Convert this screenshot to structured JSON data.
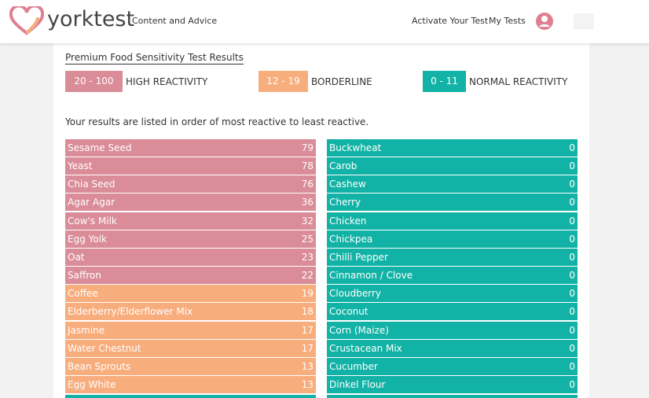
{
  "header": {
    "logo": "yorktest",
    "nav": [
      "Content and Advice"
    ],
    "actions": [
      "Activate Your Test",
      "My Tests"
    ]
  },
  "results": {
    "title": "Premium Food Sensitivity Test Results",
    "legend": [
      {
        "range": "20 - 100",
        "label": "HIGH REACTIVITY",
        "color": "#da8c98"
      },
      {
        "range": "12 - 19",
        "label": "BORDERLINE",
        "color": "#f8ad7d"
      },
      {
        "range": "0 - 11",
        "label": "NORMAL REACTIVITY",
        "color": "#12b3a6"
      }
    ],
    "note": "Your results are listed in order of most reactive to least reactive.",
    "columns": [
      [
        {
          "food": "Sesame Seed",
          "score": 79,
          "color": "#da8c98"
        },
        {
          "food": "Yeast",
          "score": 78,
          "color": "#da8c98"
        },
        {
          "food": "Chia Seed",
          "score": 76,
          "color": "#da8c98"
        },
        {
          "food": "Agar Agar",
          "score": 36,
          "color": "#da8c98"
        },
        {
          "food": "Cow's Milk",
          "score": 32,
          "color": "#da8c98"
        },
        {
          "food": "Egg Yolk",
          "score": 25,
          "color": "#da8c98"
        },
        {
          "food": "Oat",
          "score": 23,
          "color": "#da8c98"
        },
        {
          "food": "Saffron",
          "score": 22,
          "color": "#da8c98"
        },
        {
          "food": "Coffee",
          "score": 19,
          "color": "#f8ad7d"
        },
        {
          "food": "Elderberry/Elderflower Mix",
          "score": 18,
          "color": "#f8ad7d"
        },
        {
          "food": "Jasmine",
          "score": 17,
          "color": "#f8ad7d"
        },
        {
          "food": "Water Chestnut",
          "score": 17,
          "color": "#f8ad7d"
        },
        {
          "food": "Bean Sprouts",
          "score": 13,
          "color": "#f8ad7d"
        },
        {
          "food": "Egg White",
          "score": 13,
          "color": "#f8ad7d"
        }
      ],
      [
        {
          "food": "Buckwheat",
          "score": 0,
          "color": "#12b3a6"
        },
        {
          "food": "Carob",
          "score": 0,
          "color": "#12b3a6"
        },
        {
          "food": "Cashew",
          "score": 0,
          "color": "#12b3a6"
        },
        {
          "food": "Cherry",
          "score": 0,
          "color": "#12b3a6"
        },
        {
          "food": "Chicken",
          "score": 0,
          "color": "#12b3a6"
        },
        {
          "food": "Chickpea",
          "score": 0,
          "color": "#12b3a6"
        },
        {
          "food": "Chilli Pepper",
          "score": 0,
          "color": "#12b3a6"
        },
        {
          "food": "Cinnamon / Clove",
          "score": 0,
          "color": "#12b3a6"
        },
        {
          "food": "Cloudberry",
          "score": 0,
          "color": "#12b3a6"
        },
        {
          "food": "Coconut",
          "score": 0,
          "color": "#12b3a6"
        },
        {
          "food": "Corn (Maize)",
          "score": 0,
          "color": "#12b3a6"
        },
        {
          "food": "Crustacean Mix",
          "score": 0,
          "color": "#12b3a6"
        },
        {
          "food": "Cucumber",
          "score": 0,
          "color": "#12b3a6"
        },
        {
          "food": "Dinkel Flour",
          "score": 0,
          "color": "#12b3a6"
        }
      ]
    ]
  }
}
